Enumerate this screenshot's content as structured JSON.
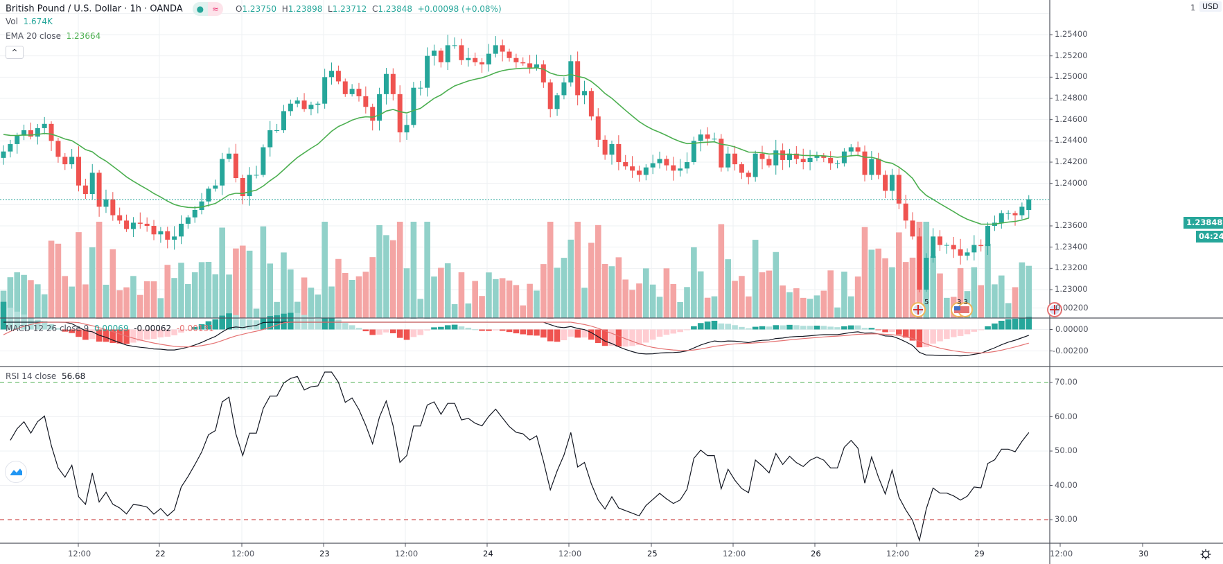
{
  "header": {
    "symbol": "British Pound / U.S. Dollar · 1h · OANDA",
    "status_dot": "●",
    "status_wave": "≈",
    "ohlc": {
      "o_key": "O",
      "o": "1.23750",
      "h_key": "H",
      "h": "1.23898",
      "l_key": "L",
      "l": "1.23712",
      "c_key": "C",
      "c": "1.23848",
      "change": "+0.00098 (+0.08%)"
    },
    "vol_label": "Vol",
    "vol_value": "1.674K",
    "ema_label": "EMA 20 close",
    "ema_value": "1.23664",
    "collapse_icon": "^"
  },
  "price_axis": {
    "currency": "USD",
    "ticks": [
      "1.25400",
      "1.25200",
      "1.25000",
      "1.24800",
      "1.24600",
      "1.24400",
      "1.24200",
      "1.24000",
      "1.23600",
      "1.23400",
      "1.23200",
      "1.23000"
    ],
    "top_tick_partial": "1",
    "last_price": "1.23848",
    "countdown": "04:24"
  },
  "macd": {
    "label": "MACD 12 26 close 9",
    "hist_value": "0.00069",
    "macd_value": "-0.00062",
    "signal_value": "-0.00131",
    "ticks": [
      "0.00200",
      "0.00000",
      "-0.00200"
    ]
  },
  "rsi": {
    "label": "RSI 14 close",
    "value": "56.68",
    "ticks": [
      "70.00",
      "60.00",
      "50.00",
      "40.00",
      "30.00"
    ]
  },
  "time_axis": {
    "labels": [
      "12:00",
      "22",
      "12:00",
      "23",
      "12:00",
      "24",
      "12:00",
      "25",
      "12:00",
      "26",
      "12:00",
      "29",
      "12:00",
      "30"
    ]
  },
  "events": [
    {
      "icon": "uk-flag-event-icon",
      "count": "5"
    },
    {
      "icon": "us-flag-event-icon",
      "count": "3 3"
    },
    {
      "icon": "uk-flag-event-icon",
      "count": ""
    }
  ],
  "colors": {
    "up": "#26a69a",
    "down": "#ef5350",
    "vol_up": "#91d1c9",
    "vol_down": "#f4a5a4",
    "ema": "#4caf50",
    "macd_line": "#131722",
    "signal_line": "#e57373",
    "hist_up_strong": "#26a69a",
    "hist_up_weak": "#b2dfdb",
    "hist_down_strong": "#ef5350",
    "hist_down_weak": "#ffcdd2",
    "rsi_line": "#131722",
    "rsi_upper": "#4caf50",
    "rsi_lower": "#c62828",
    "grid": "#eef0f3",
    "axis": "#50535e"
  },
  "chart_data": {
    "type": "candlestick",
    "title": "British Pound / U.S. Dollar · 1h · OANDA",
    "price_range": [
      1.2288,
      1.2562
    ],
    "closes": [
      1.243,
      1.2437,
      1.2445,
      1.245,
      1.2444,
      1.2452,
      1.2456,
      1.244,
      1.2425,
      1.2418,
      1.2425,
      1.2398,
      1.239,
      1.241,
      1.2378,
      1.2385,
      1.237,
      1.2365,
      1.2357,
      1.2363,
      1.2362,
      1.236,
      1.2352,
      1.2355,
      1.2347,
      1.235,
      1.2362,
      1.2368,
      1.2375,
      1.2383,
      1.2395,
      1.2398,
      1.2423,
      1.2428,
      1.2405,
      1.2388,
      1.2408,
      1.2408,
      1.2434,
      1.245,
      1.245,
      1.2468,
      1.2475,
      1.2478,
      1.247,
      1.2474,
      1.2475,
      1.25,
      1.2506,
      1.2496,
      1.2484,
      1.2489,
      1.2482,
      1.2472,
      1.2459,
      1.2484,
      1.2503,
      1.2484,
      1.2448,
      1.2455,
      1.249,
      1.249,
      1.252,
      1.2525,
      1.2514,
      1.253,
      1.253,
      1.2516,
      1.2518,
      1.2514,
      1.2512,
      1.2522,
      1.253,
      1.2524,
      1.2518,
      1.2514,
      1.2513,
      1.2509,
      1.2512,
      1.2495,
      1.247,
      1.2483,
      1.2495,
      1.2515,
      1.2483,
      1.2487,
      1.2463,
      1.2441,
      1.2427,
      1.2437,
      1.242,
      1.2416,
      1.2412,
      1.2408,
      1.2415,
      1.2419,
      1.2423,
      1.2417,
      1.2412,
      1.2414,
      1.242,
      1.244,
      1.2446,
      1.2442,
      1.2442,
      1.2415,
      1.2428,
      1.2418,
      1.241,
      1.2406,
      1.2428,
      1.2423,
      1.2417,
      1.2431,
      1.2422,
      1.2428,
      1.2423,
      1.242,
      1.2424,
      1.2426,
      1.2424,
      1.2419,
      1.2419,
      1.243,
      1.2434,
      1.243,
      1.2408,
      1.2423,
      1.2408,
      1.2393,
      1.2408,
      1.2381,
      1.2365,
      1.235,
      1.23,
      1.233,
      1.235,
      1.2342,
      1.2342,
      1.2338,
      1.2332,
      1.2335,
      1.2342,
      1.2341,
      1.236,
      1.2363,
      1.2372,
      1.2372,
      1.237,
      1.2378,
      1.2385
    ],
    "ema20_last": 1.23664,
    "rsi_range": [
      20,
      78
    ],
    "macd_range": [
      -0.0034,
      0.0028
    ]
  }
}
